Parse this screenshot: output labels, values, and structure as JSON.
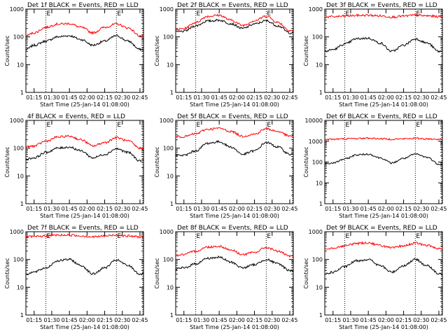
{
  "figure": {
    "xlabel": "Start Time (25-Jan-14 01:08:00)",
    "ylabel": "Counts/sec",
    "x_ticks": [
      "01:15",
      "01:30",
      "01:45",
      "02:00",
      "02:15",
      "02:30",
      "02:45"
    ],
    "marker_label": "E",
    "colors": {
      "events": "#000000",
      "lld": "#ff0000",
      "axes": "#000000"
    }
  },
  "chart_data": [
    {
      "type": "line",
      "title": "Det 1f BLACK = Events, RED = LLD",
      "xlim": [
        "01:08",
        "02:48"
      ],
      "ylim": [
        1,
        1000
      ],
      "yscale": "log",
      "yticks": [
        1,
        10,
        100,
        1000
      ],
      "markers": [
        "01:25",
        "02:25"
      ],
      "series": [
        {
          "name": "Events",
          "color": "#000000",
          "x": [
            "01:08",
            "01:15",
            "01:25",
            "01:35",
            "01:45",
            "01:55",
            "02:05",
            "02:15",
            "02:25",
            "02:35",
            "02:45"
          ],
          "values": [
            35,
            50,
            70,
            100,
            110,
            80,
            50,
            70,
            110,
            70,
            35
          ]
        },
        {
          "name": "LLD",
          "color": "#ff0000",
          "x": [
            "01:08",
            "01:15",
            "01:25",
            "01:35",
            "01:45",
            "01:55",
            "02:05",
            "02:15",
            "02:25",
            "02:35",
            "02:45"
          ],
          "values": [
            110,
            140,
            220,
            290,
            300,
            220,
            140,
            220,
            290,
            210,
            110
          ]
        }
      ]
    },
    {
      "type": "line",
      "title": "Det 2f BLACK = Events, RED = LLD",
      "xlim": [
        "01:08",
        "02:48"
      ],
      "ylim": [
        1,
        1000
      ],
      "yscale": "log",
      "yticks": [
        1,
        10,
        100,
        1000
      ],
      "markers": [
        "01:25",
        "02:25"
      ],
      "series": [
        {
          "name": "Events",
          "color": "#000000",
          "x": [
            "01:08",
            "01:15",
            "01:25",
            "01:35",
            "01:45",
            "01:55",
            "02:05",
            "02:15",
            "02:25",
            "02:35",
            "02:45"
          ],
          "values": [
            150,
            160,
            250,
            370,
            400,
            300,
            200,
            290,
            380,
            250,
            140
          ]
        },
        {
          "name": "LLD",
          "color": "#ff0000",
          "x": [
            "01:08",
            "01:15",
            "01:25",
            "01:35",
            "01:45",
            "01:55",
            "02:05",
            "02:15",
            "02:25",
            "02:35",
            "02:45"
          ],
          "values": [
            180,
            200,
            330,
            550,
            600,
            400,
            260,
            380,
            560,
            330,
            170
          ]
        }
      ]
    },
    {
      "type": "line",
      "title": "Det 3f BLACK = Events, RED = LLD",
      "xlim": [
        "01:08",
        "02:48"
      ],
      "ylim": [
        1,
        1000
      ],
      "yscale": "log",
      "yticks": [
        1,
        10,
        100,
        1000
      ],
      "markers": [
        "01:25",
        "02:25"
      ],
      "series": [
        {
          "name": "Events",
          "color": "#000000",
          "x": [
            "01:08",
            "01:15",
            "01:25",
            "01:35",
            "01:45",
            "01:55",
            "02:05",
            "02:15",
            "02:25",
            "02:35",
            "02:45"
          ],
          "values": [
            30,
            35,
            55,
            85,
            90,
            60,
            30,
            50,
            85,
            60,
            30
          ]
        },
        {
          "name": "LLD",
          "color": "#ff0000",
          "x": [
            "01:08",
            "01:15",
            "01:25",
            "01:35",
            "01:45",
            "01:55",
            "02:05",
            "02:15",
            "02:25",
            "02:35",
            "02:45"
          ],
          "values": [
            520,
            530,
            560,
            590,
            600,
            570,
            520,
            560,
            600,
            570,
            540
          ]
        }
      ]
    },
    {
      "type": "line",
      "title": "4f BLACK = Events, RED = LLD",
      "xlim": [
        "01:08",
        "02:48"
      ],
      "ylim": [
        1,
        1000
      ],
      "yscale": "log",
      "yticks": [
        1,
        10,
        100,
        1000
      ],
      "markers": [
        "01:25",
        "02:25"
      ],
      "series": [
        {
          "name": "Events",
          "color": "#000000",
          "x": [
            "01:08",
            "01:15",
            "01:25",
            "01:35",
            "01:45",
            "01:55",
            "02:05",
            "02:15",
            "02:25",
            "02:35",
            "02:45"
          ],
          "values": [
            40,
            45,
            70,
            100,
            110,
            80,
            45,
            60,
            95,
            70,
            35
          ]
        },
        {
          "name": "LLD",
          "color": "#ff0000",
          "x": [
            "01:08",
            "01:15",
            "01:25",
            "01:35",
            "01:45",
            "01:55",
            "02:05",
            "02:15",
            "02:25",
            "02:35",
            "02:45"
          ],
          "values": [
            110,
            120,
            180,
            250,
            270,
            200,
            120,
            160,
            240,
            180,
            100
          ]
        }
      ]
    },
    {
      "type": "line",
      "title": "Det 5f BLACK = Events, RED = LLD",
      "xlim": [
        "01:08",
        "02:48"
      ],
      "ylim": [
        1,
        1000
      ],
      "yscale": "log",
      "yticks": [
        1,
        10,
        100,
        1000
      ],
      "markers": [
        "01:25",
        "02:25"
      ],
      "series": [
        {
          "name": "Events",
          "color": "#000000",
          "x": [
            "01:08",
            "01:15",
            "01:25",
            "01:35",
            "01:45",
            "01:55",
            "02:05",
            "02:15",
            "02:25",
            "02:35",
            "02:45"
          ],
          "values": [
            55,
            55,
            80,
            150,
            170,
            110,
            60,
            80,
            160,
            110,
            60
          ]
        },
        {
          "name": "LLD",
          "color": "#ff0000",
          "x": [
            "01:08",
            "01:15",
            "01:25",
            "01:35",
            "01:45",
            "01:55",
            "02:05",
            "02:15",
            "02:25",
            "02:35",
            "02:45"
          ],
          "values": [
            260,
            260,
            330,
            480,
            520,
            400,
            270,
            320,
            500,
            400,
            270
          ]
        }
      ]
    },
    {
      "type": "line",
      "title": "Det 6f BLACK = Events, RED = LLD",
      "xlim": [
        "01:08",
        "02:48"
      ],
      "ylim": [
        1,
        10000
      ],
      "yscale": "log",
      "yticks": [
        1,
        10,
        100,
        1000,
        10000
      ],
      "markers": [
        "01:25",
        "02:25"
      ],
      "series": [
        {
          "name": "Events",
          "color": "#000000",
          "x": [
            "01:08",
            "01:15",
            "01:25",
            "01:35",
            "01:45",
            "01:55",
            "02:05",
            "02:15",
            "02:25",
            "02:35",
            "02:45"
          ],
          "values": [
            80,
            90,
            140,
            220,
            240,
            160,
            90,
            150,
            240,
            170,
            80
          ]
        },
        {
          "name": "LLD",
          "color": "#ff0000",
          "x": [
            "01:08",
            "01:15",
            "01:25",
            "01:35",
            "01:45",
            "01:55",
            "02:05",
            "02:15",
            "02:25",
            "02:35",
            "02:45"
          ],
          "values": [
            1200,
            1250,
            1300,
            1350,
            1400,
            1320,
            1250,
            1300,
            1380,
            1300,
            1250
          ]
        }
      ]
    },
    {
      "type": "line",
      "title": "Det 7f BLACK = Events, RED = LLD",
      "xlim": [
        "01:08",
        "02:48"
      ],
      "ylim": [
        1,
        1000
      ],
      "yscale": "log",
      "yticks": [
        1,
        10,
        100,
        1000
      ],
      "markers": [
        "01:25",
        "02:25"
      ],
      "series": [
        {
          "name": "Events",
          "color": "#000000",
          "x": [
            "01:08",
            "01:15",
            "01:25",
            "01:35",
            "01:45",
            "01:55",
            "02:05",
            "02:15",
            "02:25",
            "02:35",
            "02:45"
          ],
          "values": [
            30,
            35,
            50,
            90,
            100,
            60,
            30,
            50,
            95,
            60,
            30
          ]
        },
        {
          "name": "LLD",
          "color": "#ff0000",
          "x": [
            "01:08",
            "01:15",
            "01:25",
            "01:35",
            "01:45",
            "01:55",
            "02:05",
            "02:15",
            "02:25",
            "02:35",
            "02:45"
          ],
          "values": [
            650,
            660,
            700,
            750,
            760,
            710,
            650,
            700,
            760,
            700,
            650
          ]
        }
      ]
    },
    {
      "type": "line",
      "title": "Det 8f BLACK = Events, RED = LLD",
      "xlim": [
        "01:08",
        "02:48"
      ],
      "ylim": [
        1,
        1000
      ],
      "yscale": "log",
      "yticks": [
        1,
        10,
        100,
        1000
      ],
      "markers": [
        "01:25",
        "02:25"
      ],
      "series": [
        {
          "name": "Events",
          "color": "#000000",
          "x": [
            "01:08",
            "01:15",
            "01:25",
            "01:35",
            "01:45",
            "01:55",
            "02:05",
            "02:15",
            "02:25",
            "02:35",
            "02:45"
          ],
          "values": [
            45,
            50,
            70,
            110,
            120,
            80,
            50,
            65,
            100,
            70,
            40
          ]
        },
        {
          "name": "LLD",
          "color": "#ff0000",
          "x": [
            "01:08",
            "01:15",
            "01:25",
            "01:35",
            "01:45",
            "01:55",
            "02:05",
            "02:15",
            "02:25",
            "02:35",
            "02:45"
          ],
          "values": [
            140,
            150,
            200,
            280,
            300,
            220,
            150,
            180,
            270,
            200,
            130
          ]
        }
      ]
    },
    {
      "type": "line",
      "title": "Det 9f BLACK = Events, RED = LLD",
      "xlim": [
        "01:08",
        "02:48"
      ],
      "ylim": [
        1,
        1000
      ],
      "yscale": "log",
      "yticks": [
        1,
        10,
        100,
        1000
      ],
      "markers": [
        "01:25",
        "02:25"
      ],
      "series": [
        {
          "name": "Events",
          "color": "#000000",
          "x": [
            "01:08",
            "01:15",
            "01:25",
            "01:35",
            "01:45",
            "01:55",
            "02:05",
            "02:15",
            "02:25",
            "02:35",
            "02:45"
          ],
          "values": [
            30,
            35,
            55,
            90,
            100,
            60,
            35,
            60,
            100,
            60,
            30
          ]
        },
        {
          "name": "LLD",
          "color": "#ff0000",
          "x": [
            "01:08",
            "01:15",
            "01:25",
            "01:35",
            "01:45",
            "01:55",
            "02:05",
            "02:15",
            "02:25",
            "02:35",
            "02:45"
          ],
          "values": [
            250,
            260,
            310,
            380,
            400,
            320,
            260,
            310,
            390,
            320,
            250
          ]
        }
      ]
    }
  ]
}
